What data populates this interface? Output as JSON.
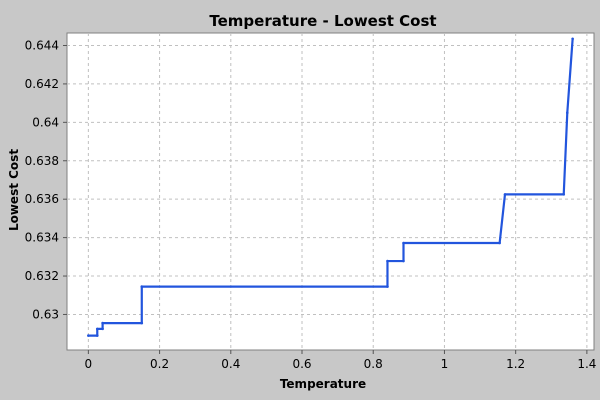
{
  "chart_data": {
    "type": "line",
    "title": "Temperature - Lowest Cost",
    "xlabel": "Temperature",
    "ylabel": "Lowest Cost",
    "xlim": [
      -0.06,
      1.42
    ],
    "ylim": [
      0.62815,
      0.64465
    ],
    "xticks": [
      0,
      0.2,
      0.4,
      0.6,
      0.8,
      1,
      1.2,
      1.4
    ],
    "xtick_labels": [
      "0",
      "0.2",
      "0.4",
      "0.6",
      "0.8",
      "1",
      "1.2",
      "1.4"
    ],
    "yticks": [
      0.63,
      0.632,
      0.634,
      0.636,
      0.638,
      0.64,
      0.642,
      0.644
    ],
    "ytick_labels": [
      "0.63",
      "0.632",
      "0.634",
      "0.636",
      "0.638",
      "0.64",
      "0.642",
      "0.644"
    ],
    "grid": true,
    "legend": "none",
    "series": [
      {
        "color": "#2255dd",
        "points": [
          [
            0.0,
            0.6289
          ],
          [
            0.025,
            0.6289
          ],
          [
            0.025,
            0.62925
          ],
          [
            0.04,
            0.62925
          ],
          [
            0.04,
            0.62955
          ],
          [
            0.15,
            0.62955
          ],
          [
            0.15,
            0.63145
          ],
          [
            0.84,
            0.63145
          ],
          [
            0.84,
            0.63278
          ],
          [
            0.885,
            0.63278
          ],
          [
            0.885,
            0.63372
          ],
          [
            1.155,
            0.63372
          ],
          [
            1.17,
            0.63625
          ],
          [
            1.335,
            0.63625
          ],
          [
            1.345,
            0.6405
          ],
          [
            1.36,
            0.64435
          ]
        ]
      }
    ]
  }
}
